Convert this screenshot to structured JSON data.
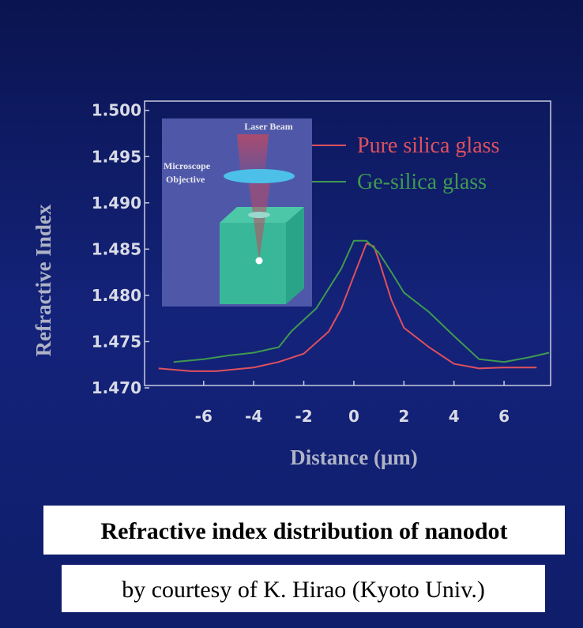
{
  "chart_data": {
    "type": "line",
    "xlabel": "Distance (μm)",
    "ylabel": "Refractive Index",
    "xlim": [
      -8.36,
      7.86
    ],
    "ylim": [
      1.47,
      1.501
    ],
    "xticks": [
      -6,
      -4,
      -2,
      0,
      2,
      4,
      6
    ],
    "yticks": [
      {
        "value": 1.5,
        "label": "1.500"
      },
      1.495,
      {
        "value": 1.49,
        "label": "1.490"
      },
      1.485,
      {
        "value": 1.48,
        "label": "1.480"
      },
      1.475,
      {
        "value": 1.47,
        "label": "1.470"
      }
    ],
    "legend": "top-right",
    "annotations": [
      "Laser Beam",
      "Microscope",
      "Objective"
    ],
    "series": [
      {
        "name": "Pure silica glass",
        "color": "#e0505e",
        "x": [
          -7.8,
          -6.5,
          -5.5,
          -4,
          -3,
          -2,
          -1,
          -0.5,
          0,
          0.5,
          0.8,
          1,
          1.5,
          2,
          3,
          4,
          5,
          6,
          7.3
        ],
        "values": [
          1.4721,
          1.4718,
          1.4718,
          1.4722,
          1.4728,
          1.4737,
          1.4761,
          1.4786,
          1.4821,
          1.4856,
          1.4853,
          1.4838,
          1.4795,
          1.4765,
          1.4744,
          1.4726,
          1.4721,
          1.4722,
          1.4722
        ]
      },
      {
        "name": "Ge-silica glass",
        "color": "#3f9a50",
        "x": [
          -7.2,
          -6,
          -5,
          -4,
          -3,
          -2.5,
          -1.5,
          -0.5,
          0,
          0.5,
          1,
          1.5,
          2,
          3,
          4,
          5,
          6,
          7,
          7.8
        ],
        "values": [
          1.4728,
          1.4731,
          1.4735,
          1.4738,
          1.4744,
          1.4761,
          1.4786,
          1.4829,
          1.4859,
          1.4859,
          1.4846,
          1.4825,
          1.4803,
          1.4782,
          1.4756,
          1.4731,
          1.4728,
          1.4733,
          1.4738
        ]
      }
    ]
  },
  "caption": {
    "title": "Refractive index distribution of nanodot",
    "credit": "by courtesy of K. Hirao (Kyoto Univ.)"
  }
}
